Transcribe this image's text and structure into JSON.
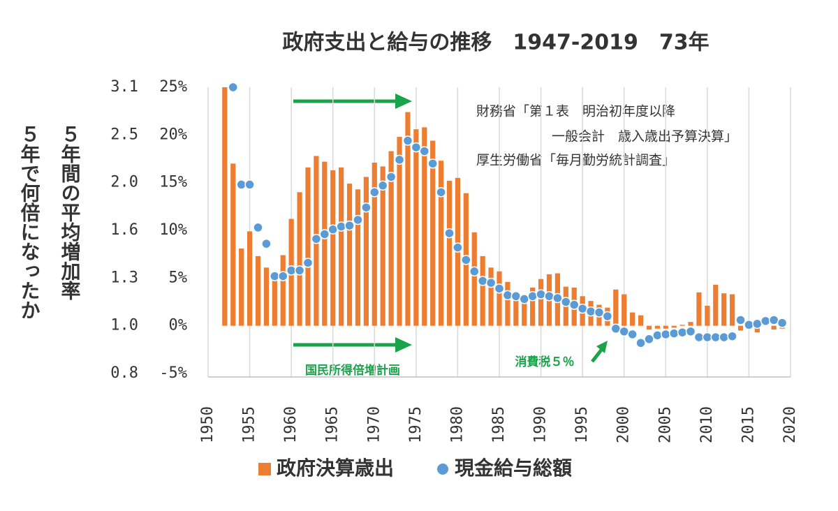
{
  "chart_data": {
    "type": "bar+scatter",
    "title": "政府支出と給与の推移　1947-2019　73年",
    "y_axis_label": "５年間の平均増加率",
    "y_multiplier_axis_label": "５年で何倍になったか",
    "xlim": [
      1950,
      2020
    ],
    "xticks": [
      1950,
      1955,
      1960,
      1965,
      1970,
      1975,
      1980,
      1985,
      1990,
      1995,
      2000,
      2005,
      2010,
      2015,
      2020
    ],
    "ylim": [
      -5,
      25
    ],
    "yticks": [
      {
        "value": 25,
        "label": "25%"
      },
      {
        "value": 20,
        "label": "20%"
      },
      {
        "value": 15,
        "label": "15%"
      },
      {
        "value": 10,
        "label": "10%"
      },
      {
        "value": 5,
        "label": "5%"
      },
      {
        "value": 0,
        "label": "0%"
      },
      {
        "value": -5,
        "label": "-5%"
      }
    ],
    "y_multiplier_ticks": [
      {
        "value": 25,
        "label": "3.1"
      },
      {
        "value": 20,
        "label": "2.5"
      },
      {
        "value": 15,
        "label": "2.0"
      },
      {
        "value": 10,
        "label": "1.6"
      },
      {
        "value": 5,
        "label": "1.3"
      },
      {
        "value": 0,
        "label": "1.0"
      },
      {
        "value": -5,
        "label": "0.8"
      }
    ],
    "grid": "x",
    "x": [
      1952,
      1953,
      1954,
      1955,
      1956,
      1957,
      1958,
      1959,
      1960,
      1961,
      1962,
      1963,
      1964,
      1965,
      1966,
      1967,
      1968,
      1969,
      1970,
      1971,
      1972,
      1973,
      1974,
      1975,
      1976,
      1977,
      1978,
      1979,
      1980,
      1981,
      1982,
      1983,
      1984,
      1985,
      1986,
      1987,
      1988,
      1989,
      1990,
      1991,
      1992,
      1993,
      1994,
      1995,
      1996,
      1997,
      1998,
      1999,
      2000,
      2001,
      2002,
      2003,
      2004,
      2005,
      2006,
      2007,
      2008,
      2009,
      2010,
      2011,
      2012,
      2013,
      2014,
      2015,
      2016,
      2017,
      2018,
      2019
    ],
    "series": [
      {
        "name": "政府決算歳出",
        "type": "bar",
        "color": "#ed7d31",
        "values": [
          25,
          17,
          8.1,
          9.9,
          7.3,
          6.1,
          5.0,
          7.4,
          11.2,
          14.0,
          16.6,
          17.8,
          17.2,
          16.3,
          16.6,
          14.9,
          14.3,
          15.6,
          17.1,
          16.7,
          18.3,
          19.8,
          22.4,
          20.6,
          20.8,
          19.4,
          17.3,
          15.2,
          15.5,
          13.9,
          9.8,
          7.3,
          6.1,
          5.7,
          4.6,
          3.3,
          3.0,
          4.0,
          4.9,
          5.4,
          5.5,
          4.1,
          4.0,
          3.1,
          2.6,
          2.2,
          1.9,
          3.8,
          3.3,
          1.4,
          1.1,
          -0.4,
          -0.3,
          -0.3,
          -0.2,
          0.1,
          0.4,
          3.5,
          2.1,
          4.3,
          3.4,
          3.3,
          -0.5,
          0.1,
          -0.7,
          0.1,
          -0.4,
          -0.3
        ]
      },
      {
        "name": "現金給与総額",
        "type": "scatter",
        "color": "#5b9bd5",
        "values": [
          null,
          25,
          14.8,
          14.8,
          10.3,
          8.6,
          5.2,
          5.2,
          5.8,
          5.8,
          6.6,
          9.1,
          9.6,
          10.1,
          10.4,
          10.5,
          11.1,
          12.4,
          14.0,
          14.7,
          15.6,
          17.4,
          19.4,
          18.7,
          18.3,
          17.0,
          14.0,
          9.7,
          8.2,
          6.9,
          5.7,
          4.7,
          4.5,
          3.9,
          3.2,
          3.1,
          2.8,
          3.1,
          3.3,
          3.1,
          2.9,
          2.5,
          2.2,
          1.8,
          1.5,
          1.4,
          1.0,
          -0.3,
          -0.6,
          -0.9,
          -1.8,
          -1.4,
          -1.0,
          -0.9,
          -0.8,
          -0.7,
          -0.6,
          -1.2,
          -1.2,
          -1.2,
          -1.2,
          -1.1,
          0.6,
          0.1,
          0.2,
          0.5,
          0.6,
          0.3
        ]
      }
    ],
    "annotations": {
      "source_1": "財務省「第１表　明治初年度以降",
      "source_2": "一般会計　歳入歳出予算決算」",
      "source_3": "厚生労働省「毎月勤労統計調査」",
      "income_doubling": "国民所得倍増計画",
      "consumption_tax": "消費税５％"
    },
    "legend": "bottom"
  }
}
